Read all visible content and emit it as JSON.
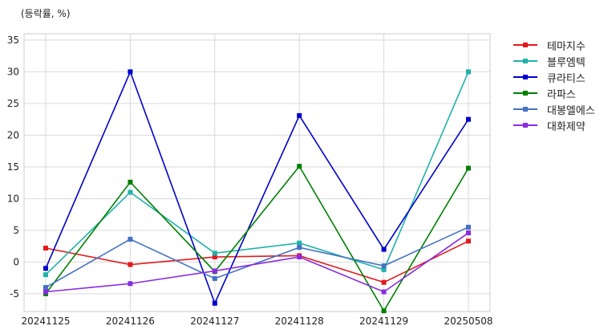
{
  "chart_data": {
    "type": "line",
    "ylabel": "(등락률, %)",
    "x": [
      "20241125",
      "20241126",
      "20241127",
      "20241128",
      "20241129",
      "20250508"
    ],
    "yticks": [
      -5,
      0,
      5,
      10,
      15,
      20,
      25,
      30,
      35
    ],
    "ylim": [
      -7.8,
      36
    ],
    "grid": true,
    "legend_position": "outside-right-top",
    "series": [
      {
        "name": "테마지수",
        "color": "#e31a1c",
        "values": [
          2.2,
          -0.4,
          0.8,
          1.0,
          -3.2,
          3.3
        ]
      },
      {
        "name": "블루엠텍",
        "color": "#20b2aa",
        "values": [
          -2.0,
          11.0,
          1.4,
          3.0,
          -1.2,
          30.0
        ]
      },
      {
        "name": "큐라티스",
        "color": "#0000cc",
        "values": [
          -1.0,
          30.0,
          -6.5,
          23.1,
          2.0,
          22.5
        ]
      },
      {
        "name": "라파스",
        "color": "#008000",
        "values": [
          -5.0,
          12.6,
          -1.5,
          15.1,
          -7.7,
          14.8
        ]
      },
      {
        "name": "대봉엘에스",
        "color": "#4472c4",
        "values": [
          -4.0,
          3.6,
          -2.6,
          2.3,
          -0.6,
          5.5
        ]
      },
      {
        "name": "대화제약",
        "color": "#8a2be2",
        "values": [
          -4.7,
          -3.4,
          -1.4,
          0.8,
          -4.7,
          4.6
        ]
      }
    ]
  }
}
